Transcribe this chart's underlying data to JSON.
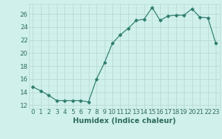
{
  "x": [
    0,
    1,
    2,
    3,
    4,
    5,
    6,
    7,
    8,
    9,
    10,
    11,
    12,
    13,
    14,
    15,
    16,
    17,
    18,
    19,
    20,
    21,
    22,
    23
  ],
  "y": [
    14.8,
    14.2,
    13.5,
    12.7,
    12.7,
    12.7,
    12.7,
    12.5,
    16.0,
    18.5,
    21.5,
    22.8,
    23.8,
    25.0,
    25.2,
    27.0,
    25.0,
    25.7,
    25.8,
    25.8,
    26.8,
    25.5,
    25.4,
    21.5
  ],
  "line_color": "#2e7d6e",
  "marker": "D",
  "marker_size": 2.5,
  "bg_color": "#cff0eb",
  "grid_color_major": "#b8d8d4",
  "grid_color_minor": "#c8e4e0",
  "xlabel": "Humidex (Indice chaleur)",
  "ylabel": "",
  "xlim": [
    -0.5,
    23.5
  ],
  "ylim": [
    11.5,
    27.5
  ],
  "yticks": [
    12,
    14,
    16,
    18,
    20,
    22,
    24,
    26
  ],
  "xticks": [
    0,
    1,
    2,
    3,
    4,
    5,
    6,
    7,
    8,
    9,
    10,
    11,
    12,
    13,
    14,
    15,
    16,
    17,
    18,
    19,
    20,
    21,
    22,
    23
  ],
  "label_fontsize": 7.5,
  "tick_fontsize": 6.5,
  "tick_color": "#2e6b5e"
}
